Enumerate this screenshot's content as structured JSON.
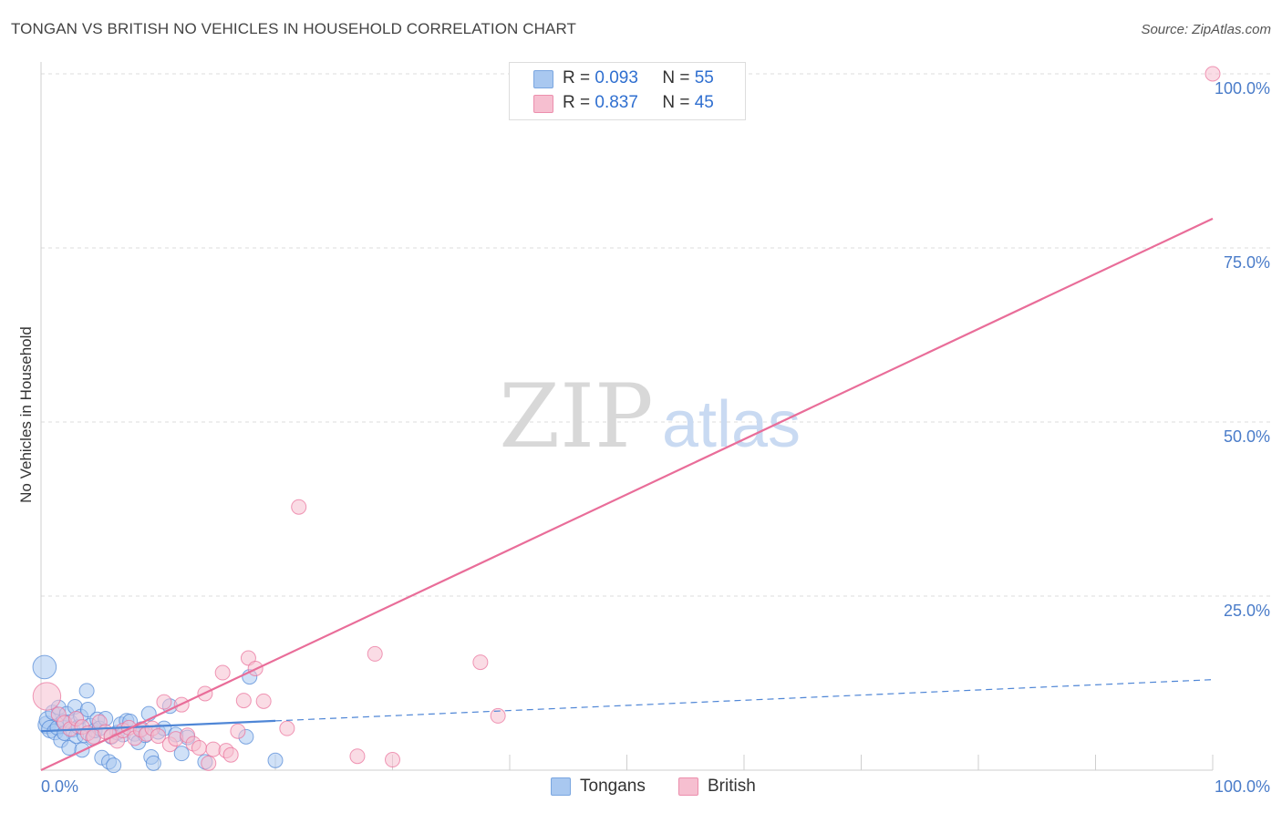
{
  "header": {
    "title": "TONGAN VS BRITISH NO VEHICLES IN HOUSEHOLD CORRELATION CHART",
    "source": "Source: ZipAtlas.com"
  },
  "legend": {
    "rows": [
      {
        "r_label": "R =",
        "r_value": "0.093",
        "n_label": "N =",
        "n_value": "55",
        "color": "#a9c8f0",
        "border": "#7aa6e0"
      },
      {
        "r_label": "R =",
        "r_value": "0.837",
        "n_label": "N =",
        "n_value": "45",
        "color": "#f6bfd0",
        "border": "#ec8fad"
      }
    ]
  },
  "bottom_legend": [
    {
      "label": "Tongans",
      "color": "#a9c8f0",
      "border": "#7aa6e0"
    },
    {
      "label": "British",
      "color": "#f6bfd0",
      "border": "#ec8fad"
    }
  ],
  "watermark": {
    "zip": "ZIP",
    "atlas": "atlas"
  },
  "chart_data": {
    "type": "scatter",
    "title": "TONGAN VS BRITISH NO VEHICLES IN HOUSEHOLD CORRELATION CHART",
    "xlabel": "",
    "ylabel": "No Vehicles in Household",
    "xlim": [
      0,
      100
    ],
    "ylim": [
      0,
      100
    ],
    "x_ticks": [
      "0.0%",
      "100.0%"
    ],
    "y_ticks": [
      "25.0%",
      "50.0%",
      "75.0%",
      "100.0%"
    ],
    "y_tick_values": [
      25,
      50,
      75,
      100
    ],
    "grid": true,
    "legend_position": "top-center",
    "series": [
      {
        "name": "Tongans",
        "color": "#4f86d6",
        "fill": "#a9c8f0",
        "r": 0.093,
        "n": 55,
        "trend": {
          "x0": 0,
          "y0": 5.6,
          "x1": 100,
          "y1": 13.0,
          "solid_until": 20
        },
        "points": [
          [
            0.3,
            14.8,
            1.6
          ],
          [
            0.5,
            6.5,
            1.2
          ],
          [
            0.6,
            7.2,
            1.2
          ],
          [
            0.8,
            5.9,
            1.2
          ],
          [
            1.0,
            8.3,
            1.0
          ],
          [
            1.2,
            5.5,
            1.1
          ],
          [
            1.4,
            6.1,
            1.0
          ],
          [
            1.5,
            9.0,
            1.0
          ],
          [
            1.7,
            4.3,
            1.0
          ],
          [
            1.9,
            7.0,
            1.0
          ],
          [
            2.0,
            5.3,
            1.0
          ],
          [
            2.2,
            8.1,
            1.0
          ],
          [
            2.4,
            3.2,
            1.0
          ],
          [
            2.5,
            6.9,
            1.0
          ],
          [
            2.7,
            5.8,
            1.0
          ],
          [
            2.9,
            9.1,
            1.0
          ],
          [
            3.0,
            4.9,
            1.0
          ],
          [
            3.2,
            6.2,
            1.0
          ],
          [
            3.4,
            7.7,
            1.0
          ],
          [
            3.5,
            2.9,
            1.0
          ],
          [
            3.7,
            5.0,
            1.0
          ],
          [
            3.9,
            11.4,
            1.0
          ],
          [
            4.0,
            8.7,
            1.0
          ],
          [
            4.2,
            6.4,
            1.0
          ],
          [
            4.4,
            4.6,
            1.0
          ],
          [
            4.6,
            5.7,
            1.0
          ],
          [
            4.8,
            7.3,
            1.0
          ],
          [
            5.0,
            6.0,
            1.0
          ],
          [
            5.2,
            1.8,
            1.0
          ],
          [
            5.5,
            7.4,
            1.0
          ],
          [
            5.8,
            1.2,
            1.0
          ],
          [
            6.0,
            4.8,
            1.0
          ],
          [
            6.2,
            0.7,
            1.0
          ],
          [
            6.5,
            5.4,
            1.0
          ],
          [
            6.8,
            6.6,
            1.0
          ],
          [
            7.0,
            5.1,
            1.0
          ],
          [
            7.3,
            7.1,
            1.0
          ],
          [
            7.6,
            7.0,
            1.0
          ],
          [
            8.0,
            5.2,
            1.0
          ],
          [
            8.3,
            4.0,
            1.0
          ],
          [
            8.6,
            5.9,
            1.0
          ],
          [
            8.9,
            5.0,
            1.0
          ],
          [
            9.2,
            8.1,
            1.0
          ],
          [
            9.4,
            1.9,
            1.0
          ],
          [
            9.6,
            1.0,
            1.0
          ],
          [
            10.0,
            5.5,
            1.0
          ],
          [
            10.5,
            6.0,
            1.0
          ],
          [
            11.0,
            9.2,
            1.0
          ],
          [
            11.5,
            5.1,
            1.0
          ],
          [
            12.0,
            2.4,
            1.0
          ],
          [
            12.5,
            4.7,
            1.0
          ],
          [
            14.0,
            1.2,
            1.0
          ],
          [
            17.5,
            4.8,
            1.0
          ],
          [
            17.8,
            13.4,
            1.0
          ],
          [
            20.0,
            1.4,
            1.0
          ]
        ]
      },
      {
        "name": "British",
        "color": "#e96d99",
        "fill": "#f6bfd0",
        "r": 0.837,
        "n": 45,
        "trend": {
          "x0": 0,
          "y0": 0,
          "x1": 100,
          "y1": 79.2,
          "solid_until": 100
        },
        "points": [
          [
            0.5,
            10.6,
            1.9
          ],
          [
            1.5,
            8.0,
            1.0
          ],
          [
            2.0,
            6.8,
            1.0
          ],
          [
            2.5,
            5.9,
            1.0
          ],
          [
            3.0,
            7.4,
            1.0
          ],
          [
            3.5,
            6.2,
            1.0
          ],
          [
            4.0,
            5.3,
            1.0
          ],
          [
            4.5,
            4.8,
            1.0
          ],
          [
            5.0,
            6.9,
            1.0
          ],
          [
            5.5,
            5.5,
            1.0
          ],
          [
            6.0,
            4.9,
            1.0
          ],
          [
            6.5,
            4.2,
            1.0
          ],
          [
            7.0,
            5.7,
            1.0
          ],
          [
            7.5,
            6.1,
            1.0
          ],
          [
            8.0,
            4.6,
            1.0
          ],
          [
            8.5,
            5.8,
            1.0
          ],
          [
            9.0,
            5.2,
            1.0
          ],
          [
            9.5,
            6.0,
            1.0
          ],
          [
            10.0,
            4.9,
            1.0
          ],
          [
            10.5,
            9.8,
            1.0
          ],
          [
            11.0,
            3.7,
            1.0
          ],
          [
            11.5,
            4.5,
            1.0
          ],
          [
            12.0,
            9.4,
            1.0
          ],
          [
            12.5,
            5.0,
            1.0
          ],
          [
            13.0,
            3.8,
            1.0
          ],
          [
            13.5,
            3.2,
            1.0
          ],
          [
            14.0,
            11.0,
            1.0
          ],
          [
            14.3,
            1.0,
            1.0
          ],
          [
            14.7,
            3.0,
            1.0
          ],
          [
            15.5,
            14.0,
            1.0
          ],
          [
            15.8,
            2.8,
            1.0
          ],
          [
            16.2,
            2.2,
            1.0
          ],
          [
            16.8,
            5.6,
            1.0
          ],
          [
            17.3,
            10.0,
            1.0
          ],
          [
            17.7,
            16.1,
            1.0
          ],
          [
            18.3,
            14.6,
            1.0
          ],
          [
            19.0,
            9.9,
            1.0
          ],
          [
            21.0,
            6.0,
            1.0
          ],
          [
            22.0,
            37.8,
            1.0
          ],
          [
            27.0,
            2.0,
            1.0
          ],
          [
            28.5,
            16.7,
            1.0
          ],
          [
            30.0,
            1.5,
            1.0
          ],
          [
            37.5,
            15.5,
            1.0
          ],
          [
            39.0,
            7.8,
            1.0
          ],
          [
            100.0,
            100.0,
            1.0
          ]
        ]
      }
    ]
  }
}
